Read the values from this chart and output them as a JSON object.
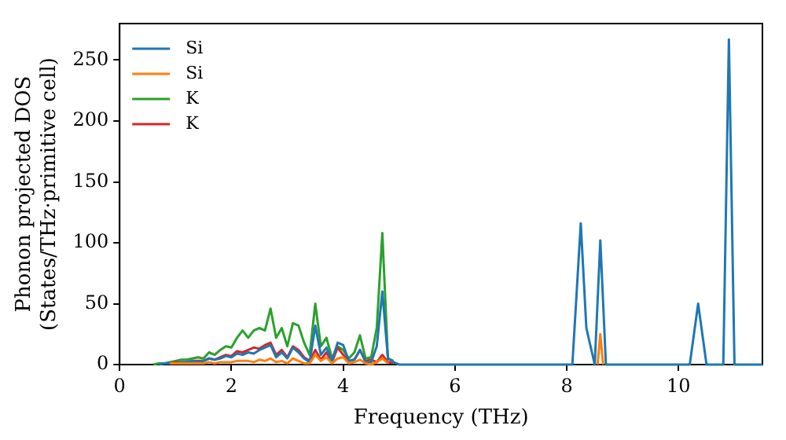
{
  "chart_data": {
    "type": "line",
    "xlabel": "Frequency (THz)",
    "ylabel": "Phonon projected DOS\n(States/THz·primitive cell)",
    "xlim": [
      0,
      11.5
    ],
    "ylim": [
      0,
      280
    ],
    "xticks": [
      0,
      2,
      4,
      6,
      8,
      10
    ],
    "yticks": [
      0,
      50,
      100,
      150,
      200,
      250
    ],
    "legend": "top left",
    "grid": false,
    "marker": "none",
    "line_style": "solid",
    "series": [
      {
        "name": "Si",
        "color": "#1f77b4",
        "x": [
          0.7,
          0.8,
          0.9,
          1.0,
          1.1,
          1.2,
          1.3,
          1.4,
          1.5,
          1.6,
          1.7,
          1.8,
          1.9,
          2.0,
          2.1,
          2.2,
          2.3,
          2.4,
          2.5,
          2.6,
          2.7,
          2.8,
          2.9,
          3.0,
          3.1,
          3.2,
          3.3,
          3.4,
          3.5,
          3.6,
          3.7,
          3.8,
          3.9,
          4.0,
          4.1,
          4.2,
          4.3,
          4.4,
          4.5,
          4.6,
          4.7,
          4.8,
          4.9,
          5.0,
          8.1,
          8.25,
          8.35,
          8.5,
          8.6,
          8.7,
          10.2,
          10.35,
          10.5,
          10.8,
          10.9,
          11.0,
          11.5
        ],
        "values": [
          0,
          1,
          1,
          1,
          2,
          2,
          3,
          2,
          3,
          5,
          4,
          5,
          7,
          6,
          9,
          8,
          10,
          9,
          12,
          14,
          16,
          6,
          10,
          5,
          14,
          10,
          5,
          2,
          32,
          8,
          14,
          3,
          18,
          16,
          3,
          4,
          12,
          2,
          2,
          15,
          60,
          5,
          2,
          0,
          0,
          116,
          30,
          0,
          102,
          0,
          0,
          50,
          0,
          0,
          267,
          0,
          0
        ]
      },
      {
        "name": "Si",
        "color": "#ff7f0e",
        "x": [
          0.9,
          1.0,
          1.1,
          1.2,
          1.3,
          1.4,
          1.5,
          1.6,
          1.7,
          1.8,
          1.9,
          2.0,
          2.1,
          2.2,
          2.3,
          2.4,
          2.5,
          2.6,
          2.7,
          2.8,
          2.9,
          3.0,
          3.1,
          3.2,
          3.3,
          3.4,
          3.5,
          3.6,
          3.7,
          3.8,
          3.9,
          4.0,
          4.1,
          4.2,
          4.3,
          4.4,
          4.5,
          4.6,
          4.7,
          4.8,
          null,
          8.55,
          8.6,
          8.65
        ],
        "values": [
          1,
          1,
          1,
          1,
          1,
          1,
          1,
          2,
          1,
          2,
          2,
          2,
          3,
          3,
          3,
          2,
          4,
          3,
          5,
          2,
          3,
          1,
          5,
          3,
          1,
          1,
          8,
          3,
          6,
          1,
          5,
          6,
          1,
          2,
          4,
          1,
          0,
          2,
          5,
          1,
          null,
          0,
          25,
          0
        ]
      },
      {
        "name": "K",
        "color": "#2ca02c",
        "x": [
          0.6,
          0.7,
          0.8,
          0.9,
          1.0,
          1.1,
          1.2,
          1.3,
          1.4,
          1.5,
          1.6,
          1.7,
          1.8,
          1.9,
          2.0,
          2.1,
          2.2,
          2.3,
          2.4,
          2.5,
          2.6,
          2.7,
          2.8,
          2.9,
          3.0,
          3.1,
          3.2,
          3.3,
          3.4,
          3.5,
          3.6,
          3.7,
          3.8,
          3.9,
          4.0,
          4.1,
          4.2,
          4.3,
          4.4,
          4.5,
          4.6,
          4.7,
          4.8,
          4.9
        ],
        "values": [
          0,
          1,
          1,
          2,
          3,
          4,
          4,
          5,
          6,
          5,
          10,
          8,
          12,
          15,
          14,
          22,
          28,
          22,
          28,
          30,
          28,
          46,
          22,
          30,
          15,
          34,
          32,
          18,
          8,
          50,
          15,
          22,
          5,
          15,
          12,
          5,
          10,
          24,
          5,
          6,
          30,
          108,
          5,
          3
        ]
      },
      {
        "name": "K",
        "color": "#d62728",
        "x": [
          0.8,
          0.9,
          1.0,
          1.1,
          1.2,
          1.3,
          1.4,
          1.5,
          1.6,
          1.7,
          1.8,
          1.9,
          2.0,
          2.1,
          2.2,
          2.3,
          2.4,
          2.5,
          2.6,
          2.7,
          2.8,
          2.9,
          3.0,
          3.1,
          3.2,
          3.3,
          3.4,
          3.5,
          3.6,
          3.7,
          3.8,
          3.9,
          4.0,
          4.1,
          4.2,
          4.3,
          4.4,
          4.5,
          4.6,
          4.7,
          4.8,
          4.9
        ],
        "values": [
          1,
          1,
          2,
          2,
          2,
          3,
          3,
          3,
          5,
          4,
          6,
          8,
          7,
          11,
          10,
          12,
          14,
          13,
          16,
          18,
          8,
          12,
          6,
          15,
          12,
          6,
          3,
          12,
          4,
          10,
          2,
          14,
          8,
          3,
          4,
          12,
          3,
          4,
          2,
          8,
          2,
          1
        ]
      }
    ]
  }
}
